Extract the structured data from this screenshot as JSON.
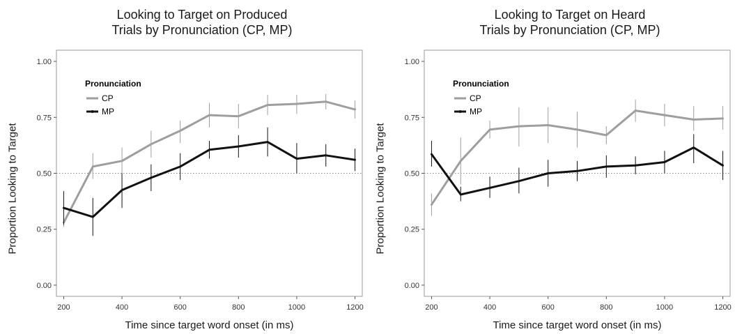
{
  "chart_data": [
    {
      "type": "line",
      "title_lines": [
        "Looking to Target on Produced",
        "Trials by Pronunciation (CP, MP)"
      ],
      "xlabel": "Time since target word onset (in ms)",
      "ylabel": "Proportion Looking to Target",
      "xlim": [
        175,
        1225
      ],
      "ylim": [
        -0.05,
        1.05
      ],
      "xticks": [
        200,
        400,
        600,
        800,
        1000,
        1200
      ],
      "xtick_labels": [
        "200",
        "400",
        "600",
        "800",
        "1000",
        "1200"
      ],
      "yticks": [
        0,
        0.25,
        0.5,
        0.75,
        1
      ],
      "ytick_labels": [
        "0.00",
        "0.25",
        "0.50",
        "0.75",
        "1.00"
      ],
      "reference_line": 0.5,
      "grid": false,
      "legend": {
        "title": "Pronunciation",
        "position": "top-left"
      },
      "x": [
        200,
        300,
        400,
        500,
        600,
        700,
        800,
        900,
        1000,
        1100,
        1200
      ],
      "series": [
        {
          "name": "CP",
          "color": "#9e9e9e",
          "values": [
            0.28,
            0.53,
            0.555,
            0.63,
            0.69,
            0.76,
            0.755,
            0.805,
            0.81,
            0.82,
            0.785
          ],
          "lower": [
            0.26,
            0.475,
            0.5,
            0.57,
            0.635,
            0.705,
            0.7,
            0.76,
            0.765,
            0.785,
            0.745
          ],
          "upper": [
            0.3,
            0.59,
            0.615,
            0.69,
            0.735,
            0.815,
            0.81,
            0.85,
            0.85,
            0.855,
            0.825
          ]
        },
        {
          "name": "MP",
          "color": "#111111",
          "values": [
            0.345,
            0.305,
            0.425,
            0.48,
            0.53,
            0.605,
            0.62,
            0.64,
            0.565,
            0.58,
            0.56
          ],
          "lower": [
            0.27,
            0.22,
            0.345,
            0.42,
            0.47,
            0.565,
            0.57,
            0.575,
            0.5,
            0.53,
            0.51
          ],
          "upper": [
            0.42,
            0.39,
            0.5,
            0.54,
            0.59,
            0.645,
            0.67,
            0.705,
            0.635,
            0.63,
            0.61
          ]
        }
      ]
    },
    {
      "type": "line",
      "title_lines": [
        "Looking to Target on Heard",
        "Trials by Pronunciation (CP, MP)"
      ],
      "xlabel": "Time since target word onset (in ms)",
      "ylabel": "Proportion Looking to Target",
      "xlim": [
        175,
        1225
      ],
      "ylim": [
        -0.05,
        1.05
      ],
      "xticks": [
        200,
        400,
        600,
        800,
        1000,
        1200
      ],
      "xtick_labels": [
        "200",
        "400",
        "600",
        "800",
        "1000",
        "1200"
      ],
      "yticks": [
        0,
        0.25,
        0.5,
        0.75,
        1
      ],
      "ytick_labels": [
        "0.00",
        "0.25",
        "0.50",
        "0.75",
        "1.00"
      ],
      "reference_line": 0.5,
      "grid": false,
      "legend": {
        "title": "Pronunciation",
        "position": "top-left"
      },
      "x": [
        200,
        300,
        400,
        500,
        600,
        700,
        800,
        900,
        1000,
        1100,
        1200
      ],
      "series": [
        {
          "name": "CP",
          "color": "#9e9e9e",
          "values": [
            0.36,
            0.555,
            0.695,
            0.71,
            0.715,
            0.695,
            0.67,
            0.78,
            0.76,
            0.74,
            0.745
          ],
          "lower": [
            0.31,
            0.45,
            0.655,
            0.62,
            0.635,
            0.615,
            0.63,
            0.73,
            0.71,
            0.69,
            0.695
          ],
          "upper": [
            0.41,
            0.66,
            0.735,
            0.795,
            0.795,
            0.775,
            0.71,
            0.83,
            0.81,
            0.8,
            0.8
          ]
        },
        {
          "name": "MP",
          "color": "#111111",
          "values": [
            0.585,
            0.405,
            0.435,
            0.465,
            0.5,
            0.51,
            0.53,
            0.535,
            0.55,
            0.615,
            0.535
          ],
          "lower": [
            0.53,
            0.375,
            0.39,
            0.41,
            0.44,
            0.465,
            0.48,
            0.495,
            0.5,
            0.545,
            0.47
          ],
          "upper": [
            0.645,
            0.44,
            0.485,
            0.525,
            0.56,
            0.555,
            0.58,
            0.575,
            0.6,
            0.675,
            0.6
          ]
        }
      ]
    }
  ]
}
